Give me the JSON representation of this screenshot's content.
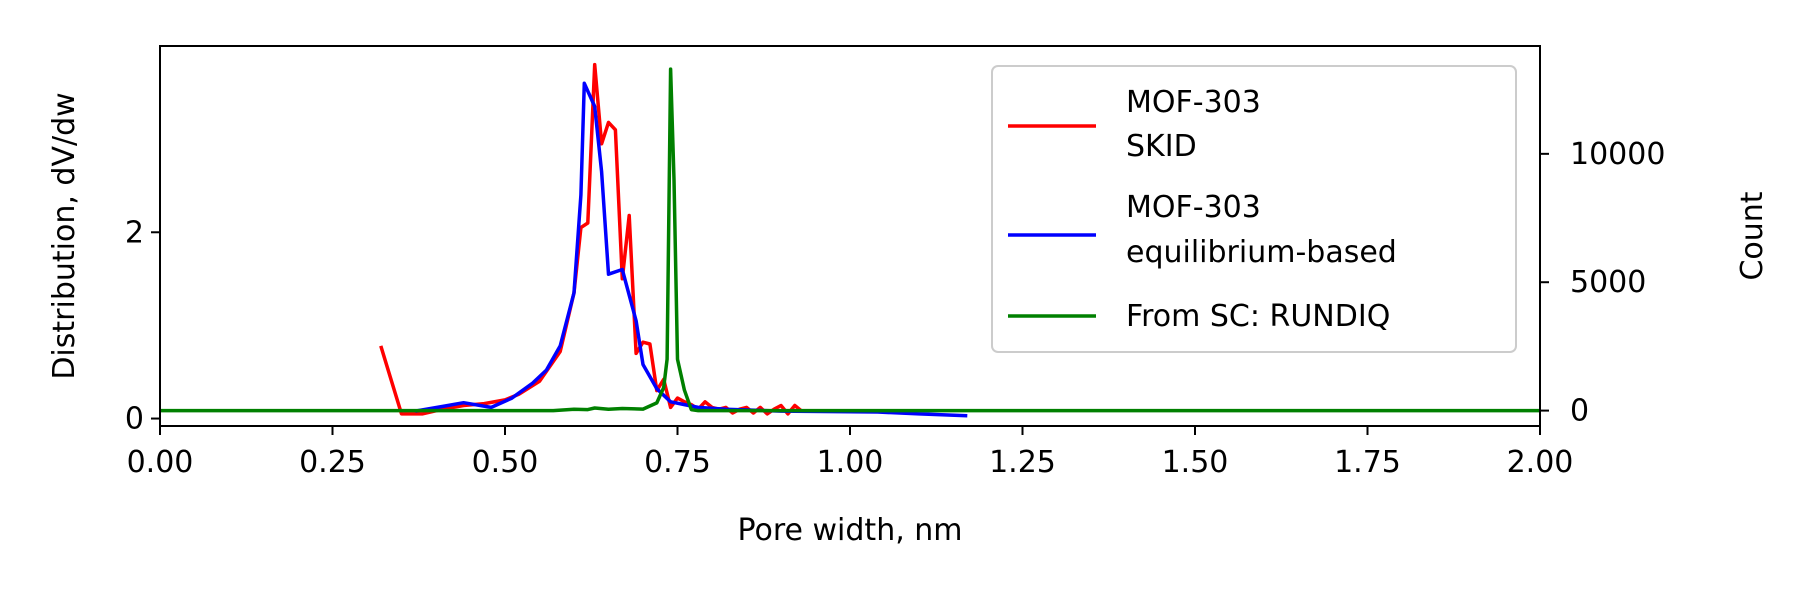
{
  "chart_data": {
    "type": "line",
    "xlabel": "Pore width, nm",
    "ylabel": "Distribution, dV/dw",
    "ylabel_right": "Count",
    "xlim": [
      0,
      2
    ],
    "ylim_left": [
      -0.08,
      4.0
    ],
    "ylim_right": [
      -600,
      14200
    ],
    "xticks": [
      "0.00",
      "0.25",
      "0.50",
      "0.75",
      "1.00",
      "1.25",
      "1.50",
      "1.75",
      "2.00"
    ],
    "yticks_left": [
      "0",
      "2"
    ],
    "yticks_right": [
      "0",
      "5000",
      "10000"
    ],
    "grid": false,
    "legend_position": "upper-right",
    "colors": {
      "skid": "#ff0000",
      "equilibrium": "#0000ff",
      "sc": "#008000",
      "right_axis_label": "#008000"
    },
    "series": [
      {
        "name": "MOF-303\nSKID",
        "axis": "left",
        "color": "#ff0000",
        "points": [
          [
            0.32,
            0.78
          ],
          [
            0.35,
            0.05
          ],
          [
            0.38,
            0.05
          ],
          [
            0.41,
            0.1
          ],
          [
            0.44,
            0.14
          ],
          [
            0.47,
            0.16
          ],
          [
            0.5,
            0.2
          ],
          [
            0.52,
            0.26
          ],
          [
            0.55,
            0.4
          ],
          [
            0.58,
            0.72
          ],
          [
            0.6,
            1.35
          ],
          [
            0.61,
            2.05
          ],
          [
            0.62,
            2.1
          ],
          [
            0.63,
            3.8
          ],
          [
            0.64,
            2.95
          ],
          [
            0.65,
            3.18
          ],
          [
            0.66,
            3.1
          ],
          [
            0.67,
            1.5
          ],
          [
            0.68,
            2.18
          ],
          [
            0.69,
            0.7
          ],
          [
            0.7,
            0.82
          ],
          [
            0.71,
            0.8
          ],
          [
            0.72,
            0.3
          ],
          [
            0.73,
            0.42
          ],
          [
            0.74,
            0.12
          ],
          [
            0.75,
            0.22
          ],
          [
            0.76,
            0.18
          ],
          [
            0.77,
            0.15
          ],
          [
            0.78,
            0.1
          ],
          [
            0.79,
            0.18
          ],
          [
            0.8,
            0.12
          ],
          [
            0.81,
            0.1
          ],
          [
            0.82,
            0.12
          ],
          [
            0.83,
            0.06
          ],
          [
            0.84,
            0.1
          ],
          [
            0.85,
            0.12
          ],
          [
            0.86,
            0.06
          ],
          [
            0.87,
            0.12
          ],
          [
            0.88,
            0.05
          ],
          [
            0.89,
            0.1
          ],
          [
            0.9,
            0.14
          ],
          [
            0.91,
            0.05
          ],
          [
            0.92,
            0.14
          ],
          [
            0.93,
            0.08
          ]
        ]
      },
      {
        "name": "MOF-303\nequilibrium-based",
        "axis": "left",
        "color": "#0000ff",
        "points": [
          [
            0.37,
            0.08
          ],
          [
            0.41,
            0.13
          ],
          [
            0.44,
            0.17
          ],
          [
            0.48,
            0.12
          ],
          [
            0.51,
            0.22
          ],
          [
            0.54,
            0.38
          ],
          [
            0.56,
            0.52
          ],
          [
            0.58,
            0.78
          ],
          [
            0.6,
            1.35
          ],
          [
            0.61,
            2.4
          ],
          [
            0.615,
            3.6
          ],
          [
            0.63,
            3.35
          ],
          [
            0.64,
            2.65
          ],
          [
            0.65,
            1.55
          ],
          [
            0.67,
            1.6
          ],
          [
            0.69,
            1.05
          ],
          [
            0.7,
            0.58
          ],
          [
            0.72,
            0.32
          ],
          [
            0.74,
            0.18
          ],
          [
            0.76,
            0.15
          ],
          [
            0.78,
            0.12
          ],
          [
            0.82,
            0.1
          ],
          [
            0.9,
            0.08
          ],
          [
            1.04,
            0.07
          ],
          [
            1.1,
            0.05
          ],
          [
            1.17,
            0.03
          ]
        ]
      },
      {
        "name": "From SC: RUNDIQ",
        "axis": "right",
        "color": "#008000",
        "points": [
          [
            0.0,
            0
          ],
          [
            0.57,
            0
          ],
          [
            0.6,
            50
          ],
          [
            0.62,
            40
          ],
          [
            0.63,
            100
          ],
          [
            0.65,
            50
          ],
          [
            0.67,
            80
          ],
          [
            0.7,
            60
          ],
          [
            0.72,
            300
          ],
          [
            0.73,
            900
          ],
          [
            0.735,
            2000
          ],
          [
            0.74,
            13300
          ],
          [
            0.745,
            9000
          ],
          [
            0.75,
            2000
          ],
          [
            0.76,
            800
          ],
          [
            0.77,
            40
          ],
          [
            0.78,
            0
          ],
          [
            2.0,
            0
          ]
        ]
      }
    ]
  }
}
